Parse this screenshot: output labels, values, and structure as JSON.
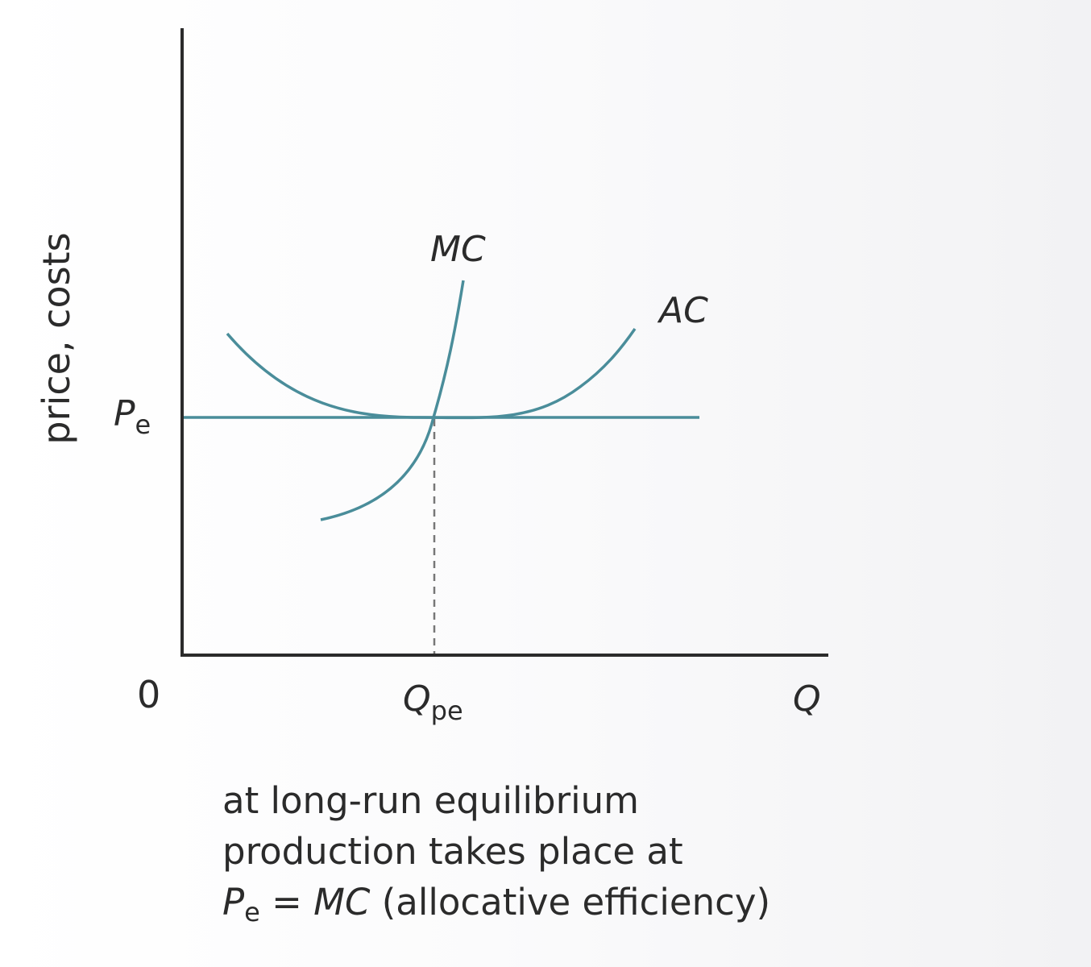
{
  "diagram": {
    "y_axis_label": "price, costs",
    "origin_label": "0",
    "x_axis_label": "Q",
    "price_label": {
      "main": "P",
      "sub": "e"
    },
    "quantity_label": {
      "main": "Q",
      "sub": "pe"
    },
    "curves": {
      "mc": "MC",
      "ac": "AC"
    },
    "colors": {
      "curve": "#4a8d9a",
      "axis": "#2b2b2b",
      "text": "#2b2b2b"
    }
  },
  "caption": {
    "line1": "at long-run equilibrium",
    "line2": "production takes place at",
    "line3": {
      "p_main": "P",
      "p_sub": "e",
      "equals": " = ",
      "mc": "MC",
      "rest": " (allocative efficiency)"
    }
  }
}
